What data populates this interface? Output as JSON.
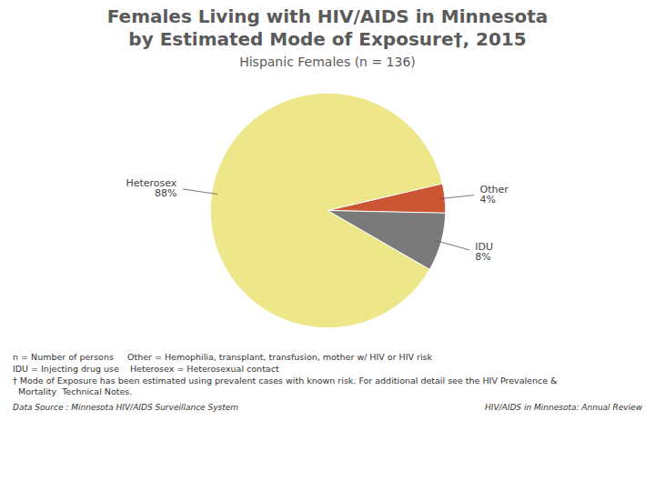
{
  "chart_data": {
    "type": "pie",
    "title": "Females Living with HIV/AIDS in Minnesota\nby Estimated Mode of Exposure†, 2015",
    "subtitle": "Hispanic Females (n = 136)",
    "categories": [
      "Heterosex",
      "Other",
      "IDU"
    ],
    "values": [
      88,
      4,
      8
    ],
    "value_labels": [
      "88%",
      "4%",
      "8%"
    ],
    "colors": [
      "#EDE78A",
      "#CC5533",
      "#7A7A7A"
    ],
    "data_labels": true,
    "annotations": [
      "n = Number of persons     Other = Hemophilia, transplant, transfusion, mother w/ HIV or HIV risk",
      "IDU = Injecting drug use    Heterosex = Heterosexual contact",
      "† Mode of Exposure has been estimated using prevalent cases with known risk. For additional detail see the HIV Prevalence &\n  Mortality  Technical Notes.",
      "Data Source : Minnesota HIV/AIDS Surveillance System",
      "HIV/AIDS in Minnesota: Annual Review"
    ]
  }
}
